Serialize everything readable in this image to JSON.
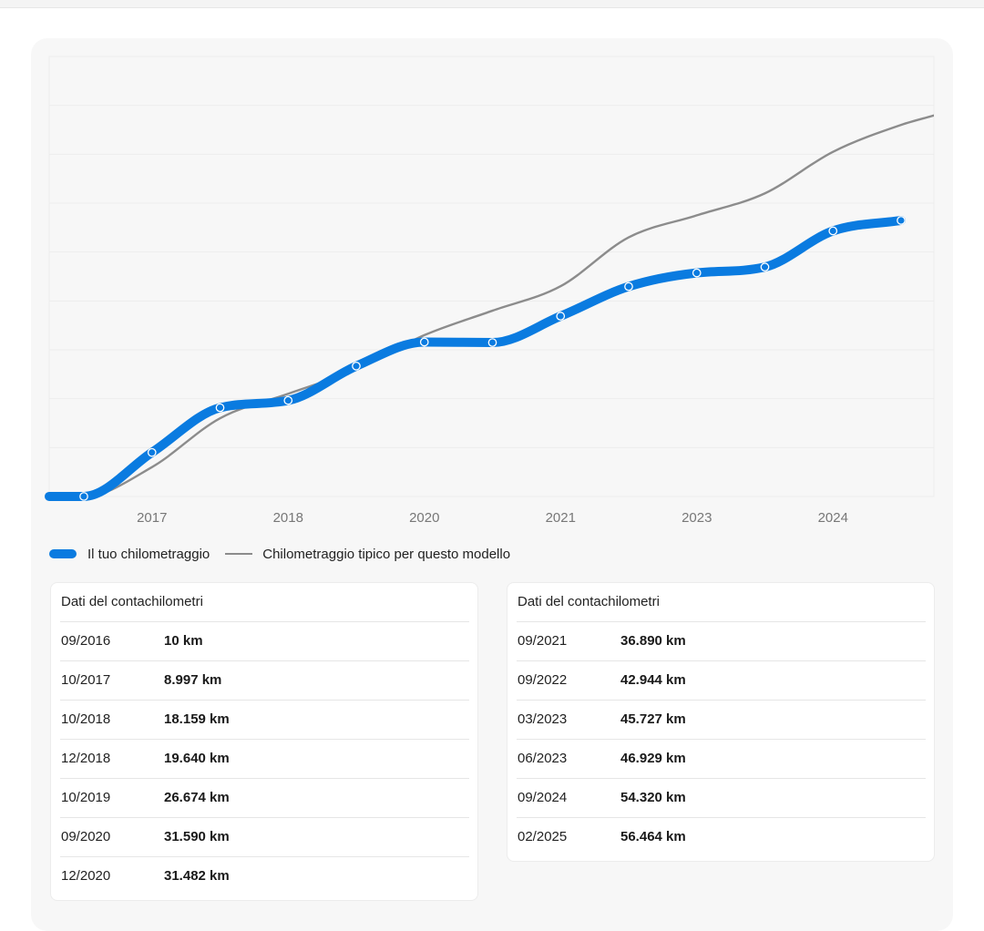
{
  "chart_data": {
    "type": "line",
    "x_tick_labels": [
      "2017",
      "2018",
      "2020",
      "2021",
      "2023",
      "2024"
    ],
    "series": [
      {
        "name": "Il tuo chilometraggio",
        "color": "#0a7be0",
        "points": [
          {
            "x": 0,
            "y": 10
          },
          {
            "x": 1,
            "y": 8997
          },
          {
            "x": 2,
            "y": 18159
          },
          {
            "x": 3,
            "y": 19640
          },
          {
            "x": 4,
            "y": 26674
          },
          {
            "x": 5,
            "y": 31590
          },
          {
            "x": 6,
            "y": 31482
          },
          {
            "x": 7,
            "y": 36890
          },
          {
            "x": 8,
            "y": 42944
          },
          {
            "x": 9,
            "y": 45727
          },
          {
            "x": 10,
            "y": 46929
          },
          {
            "x": 11,
            "y": 54320
          },
          {
            "x": 12,
            "y": 56464
          }
        ]
      },
      {
        "name": "Chilometraggio tipico per questo modello",
        "color": "#8c8c8c",
        "points": [
          {
            "x": 0,
            "y": 0
          },
          {
            "x": 1,
            "y": 6000
          },
          {
            "x": 2,
            "y": 16000
          },
          {
            "x": 3,
            "y": 21000
          },
          {
            "x": 4,
            "y": 26000
          },
          {
            "x": 5,
            "y": 33000
          },
          {
            "x": 6,
            "y": 38000
          },
          {
            "x": 7,
            "y": 43000
          },
          {
            "x": 8,
            "y": 53000
          },
          {
            "x": 9,
            "y": 57500
          },
          {
            "x": 10,
            "y": 62000
          },
          {
            "x": 11,
            "y": 70500
          },
          {
            "x": 12,
            "y": 76000
          },
          {
            "x": 12.5,
            "y": 78000
          }
        ]
      }
    ],
    "ylim": [
      0,
      90000
    ],
    "grid": true,
    "legend_position": "bottom-left"
  },
  "legend": {
    "items": [
      {
        "label": "Il tuo chilometraggio",
        "color": "#0a7be0"
      },
      {
        "label": "Chilometraggio tipico per questo modello",
        "color": "#8c8c8c"
      }
    ]
  },
  "tables": [
    {
      "title": "Dati del contachilometri",
      "rows": [
        {
          "date": "09/2016",
          "km": "10 km"
        },
        {
          "date": "10/2017",
          "km": "8.997 km"
        },
        {
          "date": "10/2018",
          "km": "18.159 km"
        },
        {
          "date": "12/2018",
          "km": "19.640 km"
        },
        {
          "date": "10/2019",
          "km": "26.674 km"
        },
        {
          "date": "09/2020",
          "km": "31.590 km"
        },
        {
          "date": "12/2020",
          "km": "31.482 km"
        }
      ]
    },
    {
      "title": "Dati del contachilometri",
      "rows": [
        {
          "date": "09/2021",
          "km": "36.890 km"
        },
        {
          "date": "09/2022",
          "km": "42.944 km"
        },
        {
          "date": "03/2023",
          "km": "45.727 km"
        },
        {
          "date": "06/2023",
          "km": "46.929 km"
        },
        {
          "date": "09/2024",
          "km": "54.320 km"
        },
        {
          "date": "02/2025",
          "km": "56.464 km"
        }
      ]
    }
  ]
}
